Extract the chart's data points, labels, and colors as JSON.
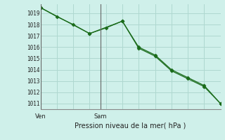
{
  "line1_x": [
    0,
    1,
    2,
    3,
    4,
    5,
    6,
    7,
    8,
    9,
    10,
    11
  ],
  "line1_y": [
    1019.5,
    1018.7,
    1018.0,
    1017.2,
    1017.7,
    1018.3,
    1016.0,
    1015.3,
    1014.0,
    1013.3,
    1012.6,
    1011.0
  ],
  "line2_x": [
    0,
    3,
    5,
    6,
    7,
    8,
    9,
    10,
    11
  ],
  "line2_y": [
    1019.5,
    1017.2,
    1018.3,
    1015.9,
    1015.2,
    1013.9,
    1013.2,
    1012.5,
    1011.0
  ],
  "color": "#1a6b1a",
  "bg_color": "#cff0ea",
  "grid_color": "#afd8d0",
  "xlabel": "Pression niveau de la mer( hPa )",
  "ytick_min": 1011,
  "ytick_max": 1019,
  "ven_x": 0,
  "sam_x": 3.667,
  "ven_label": "Ven",
  "sam_label": "Sam",
  "vline_color": "#666666",
  "xlim_min": 0,
  "xlim_max": 11,
  "ylim_min": 1010.5,
  "ylim_max": 1019.8
}
